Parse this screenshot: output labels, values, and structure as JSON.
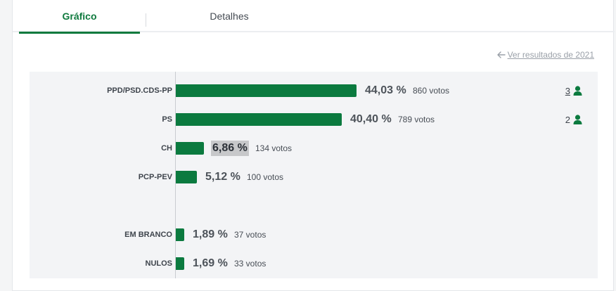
{
  "tabs": [
    {
      "label": "Gráfico",
      "active": true
    },
    {
      "label": "Detalhes",
      "active": false
    }
  ],
  "prev_results_link": "Ver resultados de 2021",
  "colors": {
    "accent": "#0f7a3e",
    "bar": "#0b7a3f",
    "chart_bg": "#f3f4f6"
  },
  "chart_data": {
    "type": "bar",
    "orientation": "horizontal",
    "categories": [
      "PPD/PSD.CDS-PP",
      "PS",
      "CH",
      "PCP-PEV",
      "EM BRANCO",
      "NULOS"
    ],
    "values": [
      44.03,
      40.4,
      6.86,
      5.12,
      1.89,
      1.69
    ],
    "rows": [
      {
        "party": "PPD/PSD.CDS-PP",
        "pct": "44,03 %",
        "votes": "860 votos",
        "seats": "3",
        "seats_link": true
      },
      {
        "party": "PS",
        "pct": "40,40 %",
        "votes": "789 votos",
        "seats": "2",
        "seats_link": false
      },
      {
        "party": "CH",
        "pct": "6,86 %",
        "votes": "134 votos",
        "seats": "",
        "highlight": true
      },
      {
        "party": "PCP-PEV",
        "pct": "5,12 %",
        "votes": "100 votos",
        "seats": ""
      },
      {
        "party": "EM BRANCO",
        "pct": "1,89 %",
        "votes": "37 votos",
        "seats": ""
      },
      {
        "party": "NULOS",
        "pct": "1,69 %",
        "votes": "33 votos",
        "seats": ""
      }
    ]
  }
}
